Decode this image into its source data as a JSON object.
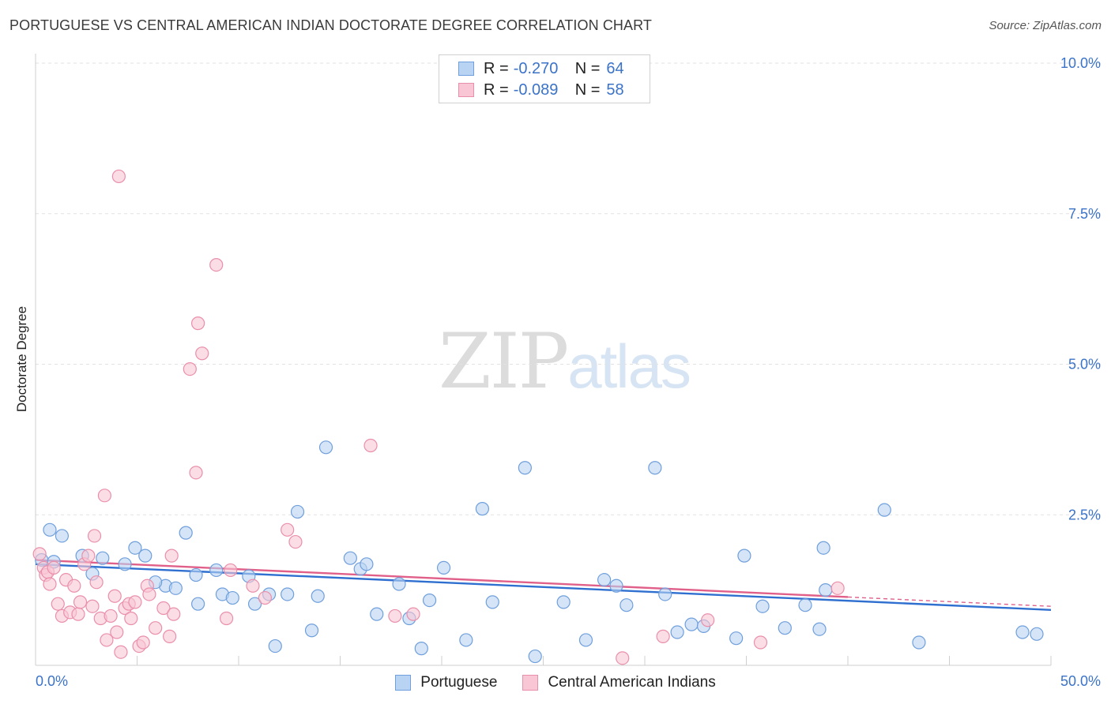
{
  "header": {
    "title": "PORTUGUESE VS CENTRAL AMERICAN INDIAN DOCTORATE DEGREE CORRELATION CHART",
    "source": "Source: ZipAtlas.com"
  },
  "watermark": {
    "zip": "ZIP",
    "atlas": "atlas"
  },
  "legend": {
    "rows": [
      {
        "r_label": "R =",
        "r_value": "-0.270",
        "n_label": "N =",
        "n_value": "64"
      },
      {
        "r_label": "R =",
        "r_value": "-0.089",
        "n_label": "N =",
        "n_value": "58"
      }
    ]
  },
  "colors": {
    "series1_fill": "#b9d3f2",
    "series1_stroke": "#6f9fdc",
    "series1_line": "#2f6fd0",
    "series2_fill": "#f8c6d4",
    "series2_stroke": "#ea8fab",
    "series2_line": "#e0608a"
  },
  "chart_data": {
    "type": "scatter",
    "title": "PORTUGUESE VS CENTRAL AMERICAN INDIAN DOCTORATE DEGREE CORRELATION CHART",
    "xlabel": "",
    "ylabel": "Doctorate Degree",
    "xlim": [
      0,
      50
    ],
    "ylim": [
      0,
      10
    ],
    "x_tick_labels": [
      "0.0%",
      "50.0%"
    ],
    "y_ticks": [
      2.5,
      5.0,
      7.5,
      10.0
    ],
    "y_tick_labels": [
      "2.5%",
      "5.0%",
      "7.5%",
      "10.0%"
    ],
    "grid": true,
    "legend": "bottom-center",
    "series": [
      {
        "name": "Portuguese",
        "r": -0.27,
        "n": 64,
        "trend": {
          "x0": 0,
          "y0": 1.68,
          "x1": 50,
          "y1": 0.92
        },
        "points": [
          [
            0.3,
            1.75
          ],
          [
            0.7,
            2.25
          ],
          [
            1.3,
            2.15
          ],
          [
            0.9,
            1.72
          ],
          [
            2.3,
            1.82
          ],
          [
            3.3,
            1.78
          ],
          [
            2.8,
            1.52
          ],
          [
            4.4,
            1.68
          ],
          [
            4.9,
            1.95
          ],
          [
            5.4,
            1.82
          ],
          [
            6.4,
            1.32
          ],
          [
            5.9,
            1.38
          ],
          [
            6.9,
            1.28
          ],
          [
            7.4,
            2.2
          ],
          [
            8.0,
            1.02
          ],
          [
            7.9,
            1.5
          ],
          [
            8.9,
            1.58
          ],
          [
            9.2,
            1.18
          ],
          [
            9.7,
            1.12
          ],
          [
            10.5,
            1.48
          ],
          [
            10.8,
            1.02
          ],
          [
            11.5,
            1.18
          ],
          [
            12.4,
            1.18
          ],
          [
            11.8,
            0.32
          ],
          [
            12.9,
            2.55
          ],
          [
            13.6,
            0.58
          ],
          [
            13.9,
            1.15
          ],
          [
            14.3,
            3.62
          ],
          [
            15.5,
            1.78
          ],
          [
            16.0,
            1.6
          ],
          [
            16.3,
            1.68
          ],
          [
            16.8,
            0.85
          ],
          [
            17.9,
            1.35
          ],
          [
            18.4,
            0.78
          ],
          [
            19.4,
            1.08
          ],
          [
            19.0,
            0.28
          ],
          [
            20.1,
            1.62
          ],
          [
            21.2,
            0.42
          ],
          [
            22.0,
            2.6
          ],
          [
            22.5,
            1.05
          ],
          [
            24.1,
            3.28
          ],
          [
            24.6,
            0.15
          ],
          [
            26.0,
            1.05
          ],
          [
            27.1,
            0.42
          ],
          [
            28.0,
            1.42
          ],
          [
            28.6,
            1.32
          ],
          [
            29.1,
            1.0
          ],
          [
            30.5,
            3.28
          ],
          [
            31.0,
            1.18
          ],
          [
            31.6,
            0.55
          ],
          [
            32.3,
            0.68
          ],
          [
            32.9,
            0.65
          ],
          [
            34.5,
            0.45
          ],
          [
            34.9,
            1.82
          ],
          [
            35.8,
            0.98
          ],
          [
            36.9,
            0.62
          ],
          [
            37.9,
            1.0
          ],
          [
            38.6,
            0.6
          ],
          [
            38.8,
            1.95
          ],
          [
            38.9,
            1.25
          ],
          [
            41.8,
            2.58
          ],
          [
            43.5,
            0.38
          ],
          [
            48.6,
            0.55
          ],
          [
            49.3,
            0.52
          ]
        ]
      },
      {
        "name": "Central American Indians",
        "r": -0.089,
        "n": 58,
        "trend": {
          "x0": 0,
          "y0": 1.75,
          "x1": 50,
          "y1": 0.98
        },
        "points": [
          [
            0.2,
            1.85
          ],
          [
            0.4,
            1.62
          ],
          [
            0.5,
            1.5
          ],
          [
            0.6,
            1.55
          ],
          [
            0.7,
            1.35
          ],
          [
            0.9,
            1.62
          ],
          [
            1.1,
            1.02
          ],
          [
            1.3,
            0.82
          ],
          [
            1.5,
            1.42
          ],
          [
            1.7,
            0.88
          ],
          [
            1.9,
            1.32
          ],
          [
            2.1,
            0.85
          ],
          [
            2.2,
            1.05
          ],
          [
            2.4,
            1.68
          ],
          [
            2.6,
            1.82
          ],
          [
            2.8,
            0.98
          ],
          [
            2.9,
            2.15
          ],
          [
            3.0,
            1.38
          ],
          [
            3.2,
            0.78
          ],
          [
            3.4,
            2.82
          ],
          [
            3.5,
            0.42
          ],
          [
            3.7,
            0.82
          ],
          [
            3.9,
            1.15
          ],
          [
            4.0,
            0.55
          ],
          [
            4.1,
            8.12
          ],
          [
            4.2,
            0.22
          ],
          [
            4.4,
            0.95
          ],
          [
            4.6,
            1.02
          ],
          [
            4.7,
            0.78
          ],
          [
            4.9,
            1.05
          ],
          [
            5.1,
            0.32
          ],
          [
            5.3,
            0.38
          ],
          [
            5.5,
            1.32
          ],
          [
            5.6,
            1.18
          ],
          [
            5.9,
            0.62
          ],
          [
            6.3,
            0.95
          ],
          [
            6.6,
            0.48
          ],
          [
            6.7,
            1.82
          ],
          [
            6.8,
            0.85
          ],
          [
            7.6,
            4.92
          ],
          [
            7.9,
            3.2
          ],
          [
            8.0,
            5.68
          ],
          [
            8.2,
            5.18
          ],
          [
            8.9,
            6.65
          ],
          [
            9.4,
            0.78
          ],
          [
            9.6,
            1.58
          ],
          [
            10.7,
            1.32
          ],
          [
            11.3,
            1.12
          ],
          [
            12.4,
            2.25
          ],
          [
            12.8,
            2.05
          ],
          [
            16.5,
            3.65
          ],
          [
            17.7,
            0.82
          ],
          [
            18.6,
            0.85
          ],
          [
            28.9,
            0.12
          ],
          [
            30.9,
            0.48
          ],
          [
            33.1,
            0.75
          ],
          [
            35.7,
            0.38
          ],
          [
            39.5,
            1.28
          ]
        ]
      }
    ]
  }
}
